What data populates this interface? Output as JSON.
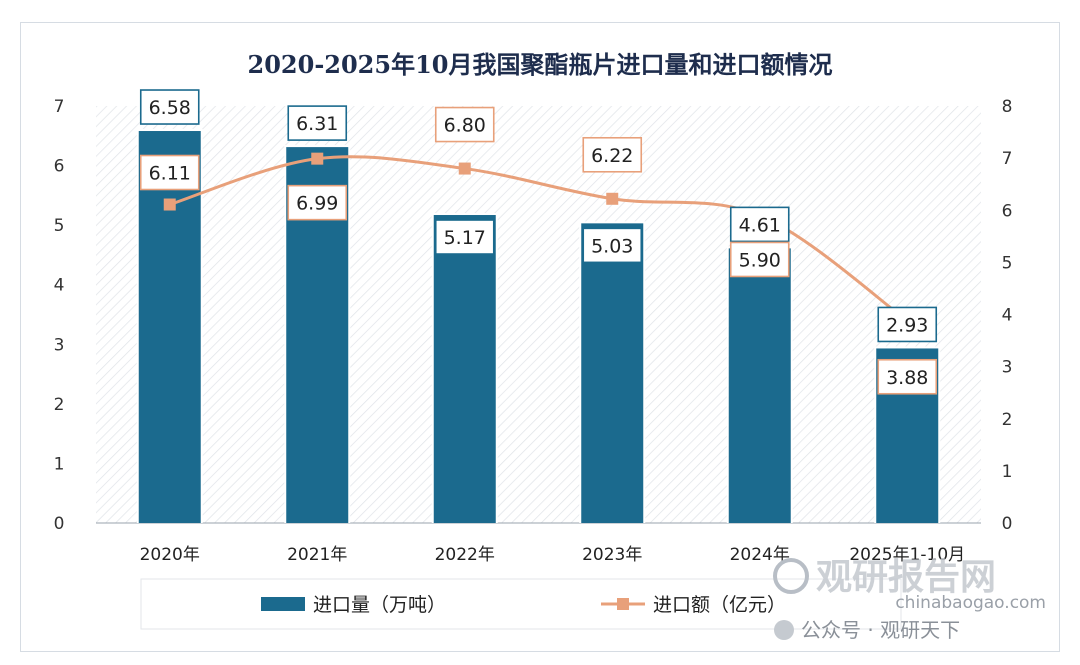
{
  "chart_data": {
    "type": "bar",
    "title": "2020-2025年10月我国聚酯瓶片进口量和进口额情况",
    "categories": [
      "2020年",
      "2021年",
      "2022年",
      "2023年",
      "2024年",
      "2025年1-10月"
    ],
    "series": [
      {
        "name": "进口量（万吨）",
        "type": "bar",
        "axis": "left",
        "values": [
          6.58,
          6.31,
          5.17,
          5.03,
          4.61,
          2.93
        ],
        "color": "#1b6a8e"
      },
      {
        "name": "进口额（亿元）",
        "type": "line",
        "axis": "right",
        "values": [
          6.11,
          6.99,
          6.8,
          6.22,
          5.9,
          3.88
        ],
        "color": "#e8a07a"
      }
    ],
    "y_left": {
      "min": 0,
      "max": 7,
      "ticks": [
        "0",
        "1",
        "2",
        "3",
        "4",
        "5",
        "6",
        "7"
      ]
    },
    "y_right": {
      "min": 0,
      "max": 8,
      "ticks": [
        "0",
        "1",
        "2",
        "3",
        "4",
        "5",
        "6",
        "7",
        "8"
      ]
    },
    "grid": false,
    "legend_position": "bottom"
  },
  "watermark": {
    "brand": "观研报告网",
    "url": "chinabaogao.com",
    "account": "公众号 · 观研天下"
  }
}
